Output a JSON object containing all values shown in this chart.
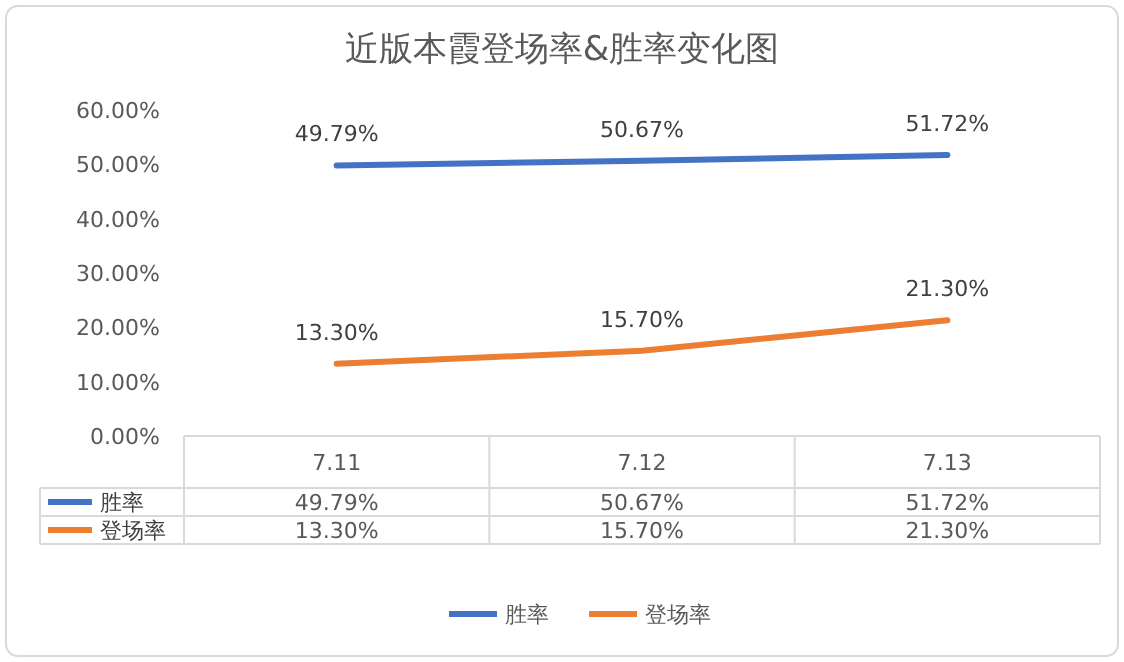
{
  "chart_data": {
    "type": "line",
    "title": "近版本霞登场率&胜率变化图",
    "categories": [
      "7.11",
      "7.12",
      "7.13"
    ],
    "series": [
      {
        "name": "胜率",
        "color": "#4472c4",
        "values": [
          49.79,
          50.67,
          51.72
        ],
        "value_labels": [
          "49.79%",
          "50.67%",
          "51.72%"
        ]
      },
      {
        "name": "登场率",
        "color": "#ed7d31",
        "values": [
          13.3,
          15.7,
          21.3
        ],
        "value_labels": [
          "13.30%",
          "15.70%",
          "21.30%"
        ]
      }
    ],
    "ylim": [
      0,
      60
    ],
    "yticks": [
      {
        "value": 0,
        "label": "0.00%"
      },
      {
        "value": 10,
        "label": "10.00%"
      },
      {
        "value": 20,
        "label": "20.00%"
      },
      {
        "value": 30,
        "label": "30.00%"
      },
      {
        "value": 40,
        "label": "40.00%"
      },
      {
        "value": 50,
        "label": "50.00%"
      },
      {
        "value": 60,
        "label": "60.00%"
      }
    ],
    "grid": false,
    "legend": "bottom",
    "marker": "none",
    "line_style": "solid"
  }
}
